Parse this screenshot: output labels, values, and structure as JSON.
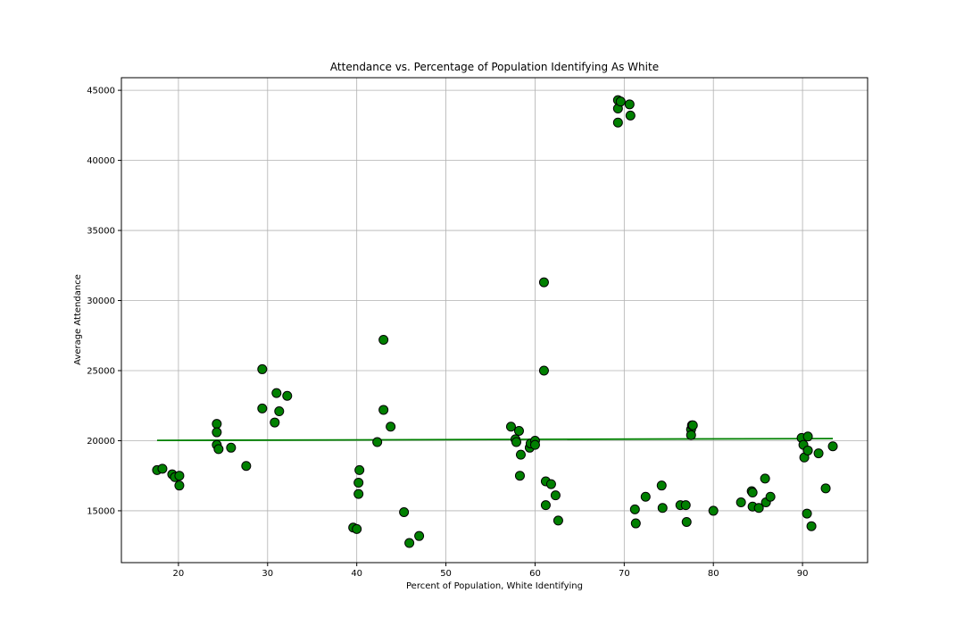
{
  "chart_data": {
    "type": "scatter",
    "title": "Attendance vs. Percentage of Population Identifying As White",
    "xlabel": "Percent of Population, White Identifying",
    "ylabel": "Average Attendance",
    "xlim": [
      13.6,
      97.3
    ],
    "ylim": [
      11300,
      45900
    ],
    "xticks": [
      20,
      30,
      40,
      50,
      60,
      70,
      80,
      90
    ],
    "yticks": [
      15000,
      20000,
      25000,
      30000,
      35000,
      40000,
      45000
    ],
    "grid": true,
    "colors": {
      "marker": "#008000",
      "marker_edge": "#000000",
      "trend": "#008000"
    },
    "points": [
      [
        17.6,
        17900
      ],
      [
        18.2,
        18000
      ],
      [
        19.3,
        17600
      ],
      [
        19.6,
        17400
      ],
      [
        20.1,
        17500
      ],
      [
        20.1,
        16800
      ],
      [
        24.3,
        21200
      ],
      [
        24.3,
        20600
      ],
      [
        24.3,
        19700
      ],
      [
        24.5,
        19400
      ],
      [
        25.9,
        19500
      ],
      [
        27.6,
        18200
      ],
      [
        29.4,
        25100
      ],
      [
        29.4,
        22300
      ],
      [
        30.8,
        21300
      ],
      [
        31.0,
        23400
      ],
      [
        31.3,
        22100
      ],
      [
        32.2,
        23200
      ],
      [
        39.6,
        13800
      ],
      [
        40.0,
        13700
      ],
      [
        40.2,
        17000
      ],
      [
        40.3,
        17900
      ],
      [
        40.2,
        16200
      ],
      [
        42.3,
        19900
      ],
      [
        43.0,
        27200
      ],
      [
        43.0,
        22200
      ],
      [
        43.8,
        21000
      ],
      [
        45.3,
        14900
      ],
      [
        45.9,
        12700
      ],
      [
        47.0,
        13200
      ],
      [
        57.3,
        21000
      ],
      [
        57.8,
        20100
      ],
      [
        57.9,
        19900
      ],
      [
        58.2,
        20700
      ],
      [
        58.4,
        19000
      ],
      [
        58.3,
        17500
      ],
      [
        59.4,
        19500
      ],
      [
        59.5,
        19800
      ],
      [
        60.0,
        20000
      ],
      [
        60.0,
        19700
      ],
      [
        61.0,
        31300
      ],
      [
        61.0,
        25000
      ],
      [
        61.2,
        17100
      ],
      [
        61.2,
        15400
      ],
      [
        61.8,
        16900
      ],
      [
        62.3,
        16100
      ],
      [
        62.6,
        14300
      ],
      [
        69.3,
        44300
      ],
      [
        69.3,
        43700
      ],
      [
        69.3,
        42700
      ],
      [
        69.6,
        44200
      ],
      [
        70.6,
        44000
      ],
      [
        70.7,
        43200
      ],
      [
        71.2,
        15100
      ],
      [
        71.3,
        14100
      ],
      [
        72.4,
        16000
      ],
      [
        74.2,
        16800
      ],
      [
        74.3,
        15200
      ],
      [
        76.3,
        15400
      ],
      [
        76.9,
        15400
      ],
      [
        77.0,
        14200
      ],
      [
        77.5,
        20800
      ],
      [
        77.5,
        20400
      ],
      [
        77.6,
        21100
      ],
      [
        77.7,
        21100
      ],
      [
        80.0,
        15000
      ],
      [
        83.1,
        15600
      ],
      [
        84.3,
        16400
      ],
      [
        84.4,
        16300
      ],
      [
        84.4,
        15300
      ],
      [
        85.1,
        15200
      ],
      [
        85.8,
        17300
      ],
      [
        85.9,
        15600
      ],
      [
        86.4,
        16000
      ],
      [
        89.9,
        20200
      ],
      [
        90.1,
        19700
      ],
      [
        90.2,
        18800
      ],
      [
        90.6,
        20300
      ],
      [
        90.5,
        14800
      ],
      [
        90.6,
        19300
      ],
      [
        91.0,
        13900
      ],
      [
        91.8,
        19100
      ],
      [
        92.6,
        16600
      ],
      [
        93.4,
        19600
      ]
    ],
    "trend_line": {
      "x": [
        17.6,
        93.4
      ],
      "y": [
        20020,
        20150
      ]
    }
  }
}
